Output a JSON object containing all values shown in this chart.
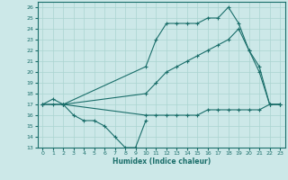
{
  "xlabel": "Humidex (Indice chaleur)",
  "bg_color": "#cce8e8",
  "line_color": "#1a6e6a",
  "grid_color": "#aad4d0",
  "xlim": [
    -0.5,
    23.5
  ],
  "ylim": [
    13,
    26.5
  ],
  "xticks": [
    0,
    1,
    2,
    3,
    4,
    5,
    6,
    7,
    8,
    9,
    10,
    11,
    12,
    13,
    14,
    15,
    16,
    17,
    18,
    19,
    20,
    21,
    22,
    23
  ],
  "yticks": [
    13,
    14,
    15,
    16,
    17,
    18,
    19,
    20,
    21,
    22,
    23,
    24,
    25,
    26
  ],
  "series": [
    {
      "x": [
        0,
        1,
        2,
        10,
        11,
        12,
        13,
        14,
        15,
        16,
        17,
        18,
        19,
        20,
        21,
        22,
        23
      ],
      "y": [
        17,
        17.5,
        17,
        20.5,
        23,
        24.5,
        24.5,
        24.5,
        24.5,
        25,
        25,
        26,
        24.5,
        22,
        20,
        17,
        17
      ]
    },
    {
      "x": [
        0,
        1,
        2,
        10,
        11,
        12,
        13,
        14,
        15,
        16,
        17,
        18,
        19,
        20,
        21,
        22,
        23
      ],
      "y": [
        17,
        17,
        17,
        18,
        19,
        20,
        20.5,
        21,
        21.5,
        22,
        22.5,
        23,
        24,
        22,
        20.5,
        17,
        17
      ]
    },
    {
      "x": [
        0,
        2,
        10,
        11,
        12,
        13,
        14,
        15,
        16,
        17,
        18,
        19,
        20,
        21,
        22,
        23
      ],
      "y": [
        17,
        17,
        16,
        16,
        16,
        16,
        16,
        16,
        16.5,
        16.5,
        16.5,
        16.5,
        16.5,
        16.5,
        17,
        17
      ]
    },
    {
      "x": [
        2,
        3,
        4,
        5,
        6,
        7,
        8,
        9,
        10
      ],
      "y": [
        17,
        16,
        15.5,
        15.5,
        15,
        14,
        13,
        13,
        15.5
      ]
    }
  ]
}
